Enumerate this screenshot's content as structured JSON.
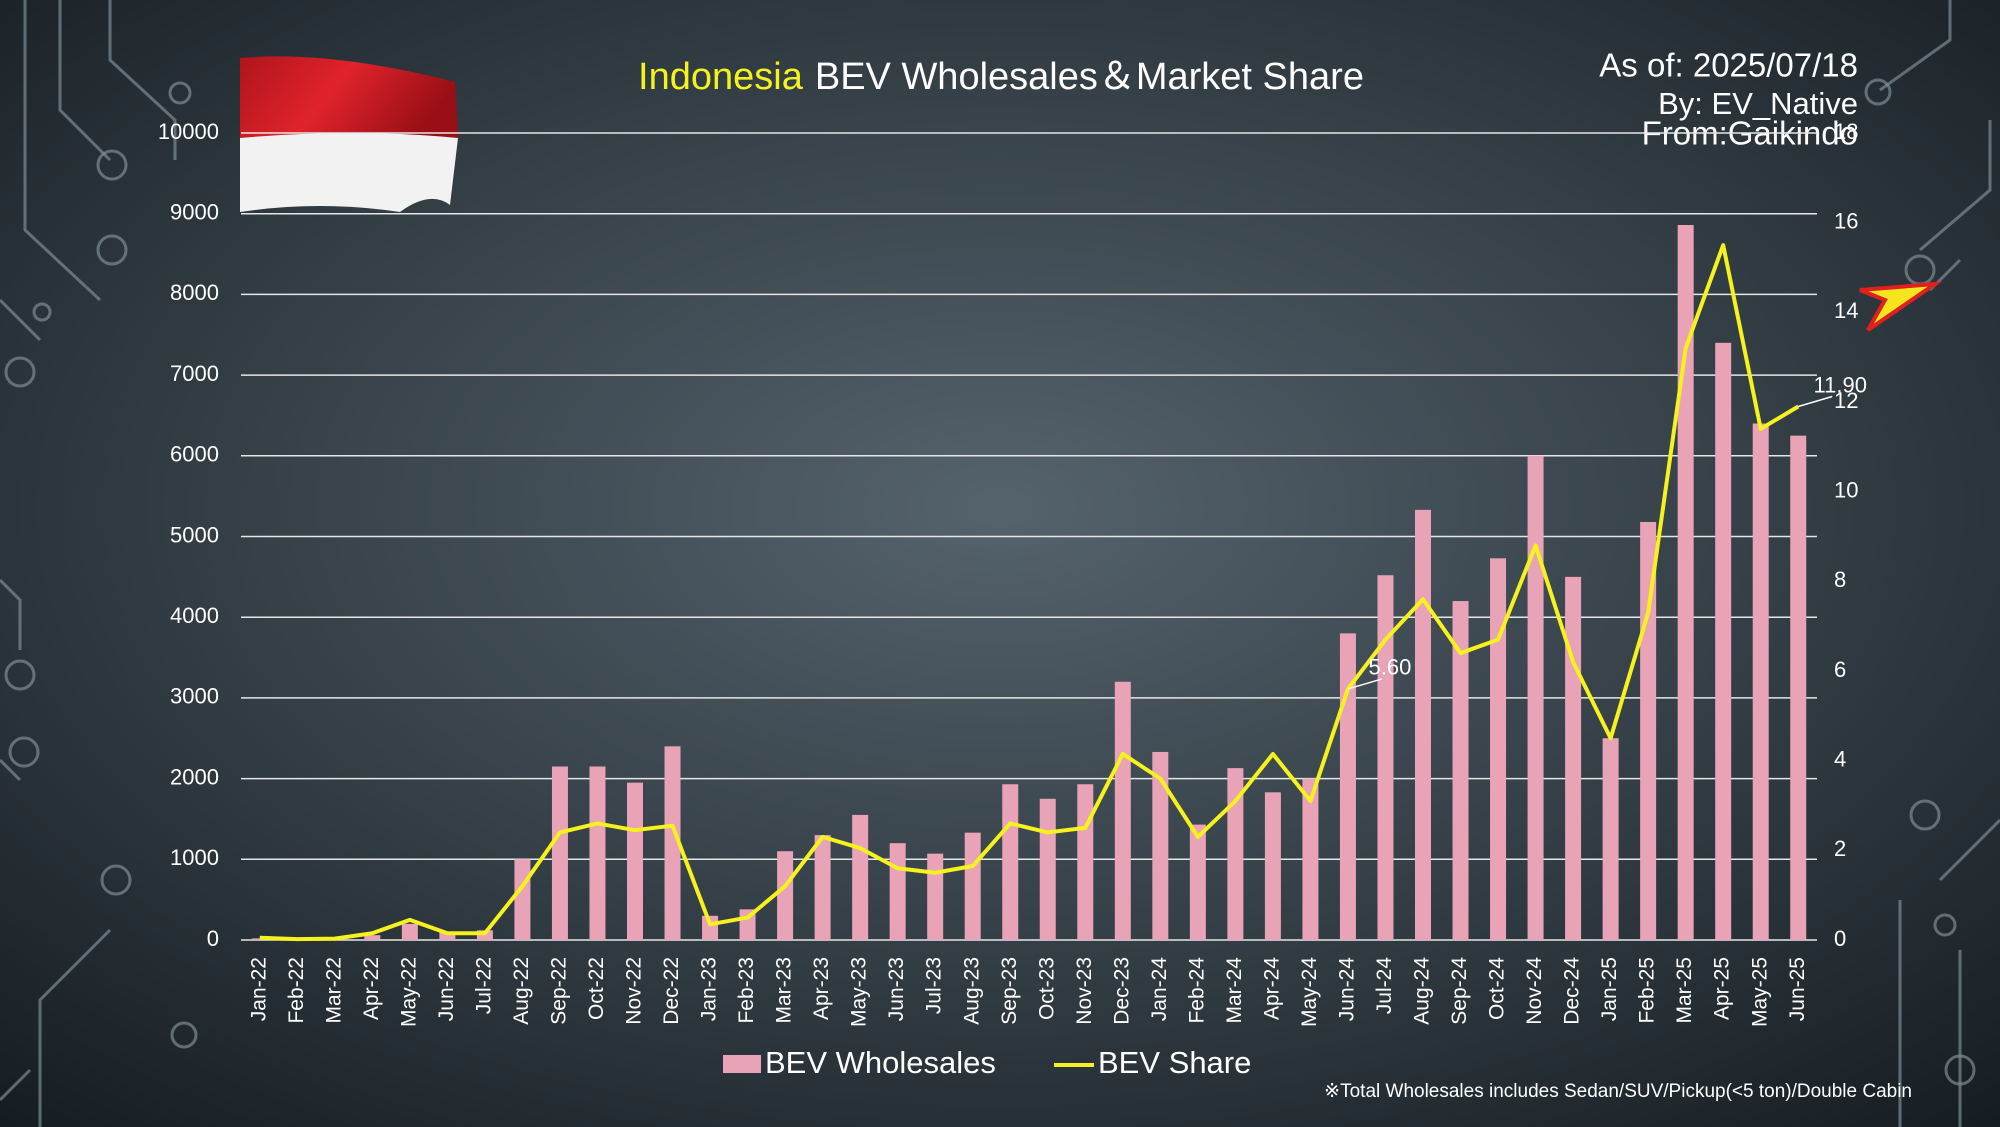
{
  "chart_data": {
    "type": "bar_line",
    "title_parts": [
      "Indonesia",
      "BEV Wholesales＆Market Share"
    ],
    "annotations": [
      "As of: 2025/07/18",
      "By: EV_Native",
      "From:Gaikindo"
    ],
    "footnote": "※Total Wholesales includes Sedan/SUV/Pickup(<5 ton)/Double Cabin",
    "categories": [
      "Jan-22",
      "Feb-22",
      "Mar-22",
      "Apr-22",
      "May-22",
      "Jun-22",
      "Jul-22",
      "Aug-22",
      "Sep-22",
      "Oct-22",
      "Nov-22",
      "Dec-22",
      "Jan-23",
      "Feb-23",
      "Mar-23",
      "Apr-23",
      "May-23",
      "Jun-23",
      "Jul-23",
      "Aug-23",
      "Sep-23",
      "Oct-23",
      "Nov-23",
      "Dec-23",
      "Jan-24",
      "Feb-24",
      "Mar-24",
      "Apr-24",
      "May-24",
      "Jun-24",
      "Jul-24",
      "Aug-24",
      "Sep-24",
      "Oct-24",
      "Nov-24",
      "Dec-24",
      "Jan-25",
      "Feb-25",
      "Mar-25",
      "Apr-25",
      "May-25",
      "Jun-25"
    ],
    "series": [
      {
        "name": "BEV Wholesales",
        "type": "bar",
        "color": "#e8a3b6",
        "values": [
          20,
          10,
          20,
          60,
          200,
          100,
          120,
          1000,
          2150,
          2150,
          1950,
          2400,
          300,
          380,
          1100,
          1300,
          1550,
          1200,
          1070,
          1330,
          1930,
          1750,
          1930,
          3200,
          2330,
          1430,
          2130,
          1830,
          2000,
          3800,
          4520,
          5330,
          4200,
          4730,
          6000,
          4500,
          2500,
          5180,
          8860,
          7400,
          6400,
          6250
        ]
      },
      {
        "name": "BEV Share",
        "type": "line",
        "axis": "y2",
        "color": "#f5f21e",
        "values": [
          0.05,
          0.02,
          0.03,
          0.15,
          0.45,
          0.15,
          0.15,
          1.2,
          2.4,
          2.6,
          2.45,
          2.55,
          0.35,
          0.5,
          1.2,
          2.3,
          2.05,
          1.6,
          1.5,
          1.65,
          2.6,
          2.4,
          2.5,
          4.15,
          3.6,
          2.3,
          3.1,
          4.15,
          3.1,
          5.6,
          6.7,
          7.6,
          6.4,
          6.7,
          8.8,
          6.2,
          4.5,
          7.3,
          13.2,
          15.5,
          11.4,
          11.9
        ],
        "value_labels": [
          null,
          null,
          null,
          null,
          null,
          null,
          null,
          null,
          null,
          null,
          null,
          null,
          null,
          null,
          null,
          null,
          null,
          null,
          null,
          null,
          null,
          null,
          null,
          null,
          null,
          null,
          null,
          null,
          null,
          "5.60",
          null,
          null,
          null,
          null,
          null,
          null,
          null,
          null,
          null,
          null,
          null,
          "11.90"
        ]
      }
    ],
    "ylim": [
      0,
      10000
    ],
    "yticks": [
      0,
      1000,
      2000,
      3000,
      4000,
      5000,
      6000,
      7000,
      8000,
      9000,
      10000
    ],
    "y2lim": [
      0,
      18
    ],
    "y2ticks": [
      0,
      2,
      4,
      6,
      8,
      10,
      12,
      14,
      16,
      18
    ],
    "grid": true
  }
}
